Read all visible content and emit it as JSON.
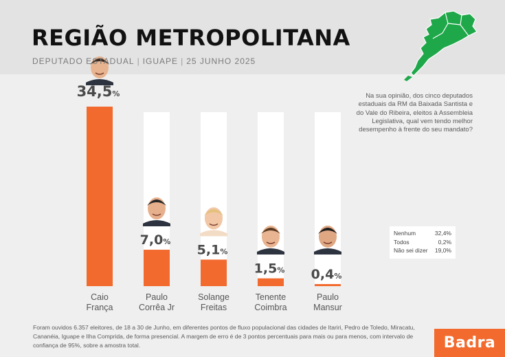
{
  "header": {
    "title": "REGIÃO METROPOLITANA",
    "subtitle_parts": [
      "DEPUTADO ESTADUAL",
      "IGUAPE",
      "25 JUNHO 2025"
    ]
  },
  "question": "Na sua opinião, dos cinco deputados estaduais da RM da Baixada Santista e do Vale do Ribeira, eleitos à Assembleia Legislativa, qual vem tendo melhor desempenho à frente do seu mandato?",
  "chart_data": {
    "type": "bar",
    "categories": [
      "Caio França",
      "Paulo Corrêa Jr",
      "Solange Freitas",
      "Tenente Coimbra",
      "Paulo Mansur"
    ],
    "category_lines": [
      [
        "Caio",
        "França"
      ],
      [
        "Paulo",
        "Corrêa Jr"
      ],
      [
        "Solange",
        "Freitas"
      ],
      [
        "Tenente",
        "Coimbra"
      ],
      [
        "Paulo",
        "Mansur"
      ]
    ],
    "values": [
      34.5,
      7.0,
      5.1,
      1.5,
      0.4
    ],
    "value_labels": [
      "34,5",
      "7,0",
      "5,1",
      "1,5",
      "0,4"
    ],
    "unit": "%",
    "ylim": [
      0,
      34.5
    ],
    "colors": {
      "bar": "#f26a2e",
      "track": "#ffffff"
    },
    "others": [
      {
        "label": "Nenhum",
        "value": "32,4%"
      },
      {
        "label": "Todos",
        "value": "0,2%"
      },
      {
        "label": "Não sei dizer",
        "value": "19,0%"
      }
    ]
  },
  "footnote": "Foram ouvidos 6.357 eleitores, de 18 a 30 de Junho, em diferentes pontos de fluxo populacional das cidades de Itariri, Pedro de Toledo, Miracatu, Cananéia, Iguape e Ilha Comprida, de forma presencial. A margem de erro é de 3 pontos percentuais para mais ou para menos, com intervalo de confiança de 95%, sobre a amostra total.",
  "brand": "Badra",
  "colors": {
    "accent": "#f26a2e",
    "map": "#1fa84a"
  }
}
